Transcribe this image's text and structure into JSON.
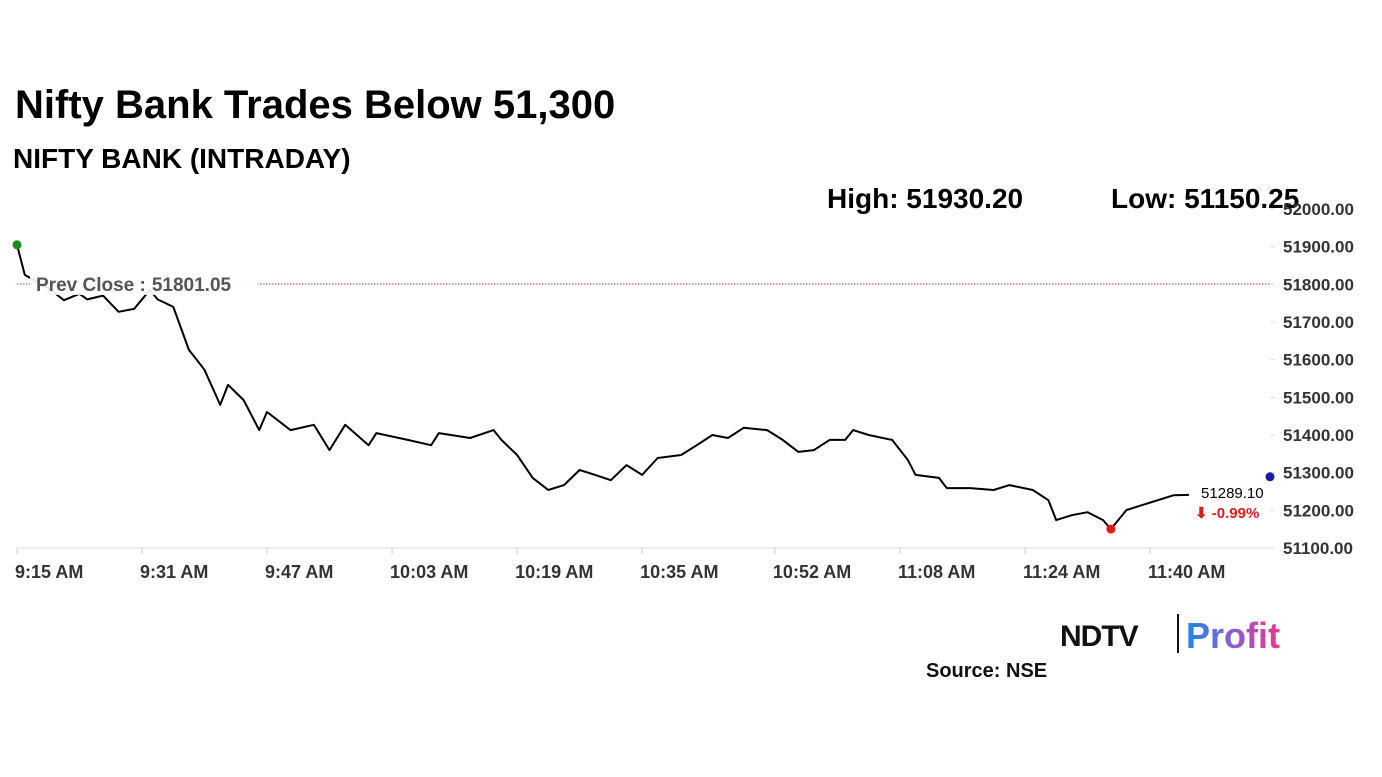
{
  "chart_data": {
    "type": "line",
    "title": "Nifty Bank Trades Below 51,300",
    "subtitle": "NIFTY BANK (INTRADAY)",
    "stats": [
      "High: 51930.20",
      "Low: 51150.25"
    ],
    "prev_close_label": "Prev Close :",
    "prev_close": 51801.05,
    "prev_close_color": "#c0392b",
    "last": {
      "value": 51289.1,
      "label": "51289.10",
      "color": "#1a1aa8"
    },
    "change_label": "⬇ -0.99%",
    "change_color": "#e01b1b",
    "start_color": "#1a8a1a",
    "low_color": "#e01b1b",
    "source": "Source: NSE",
    "logo": [
      "NDTV",
      "Profit"
    ],
    "x": [
      "9:15 AM",
      "9:16 AM",
      "9:19 AM",
      "9:21 AM",
      "9:23 AM",
      "9:24 AM",
      "9:26 AM",
      "9:28 AM",
      "9:30 AM",
      "9:32 AM",
      "9:33 AM",
      "9:35 AM",
      "9:37 AM",
      "9:38 AM",
      "9:39 AM",
      "9:41 AM",
      "9:42 AM",
      "9:44 AM",
      "9:46 AM",
      "9:47 AM",
      "9:50 AM",
      "9:53 AM",
      "9:55 AM",
      "9:57 AM",
      "10:00 AM",
      "10:01 AM",
      "10:05 AM",
      "10:08 AM",
      "10:09 AM",
      "10:13 AM",
      "10:16 AM",
      "10:17 AM",
      "10:19 AM",
      "10:21 AM",
      "10:23 AM",
      "10:25 AM",
      "10:27 AM",
      "10:29 AM",
      "10:31 AM",
      "10:33 AM",
      "10:35 AM",
      "10:37 AM",
      "10:40 AM",
      "10:42 AM",
      "10:44 AM",
      "10:46 AM",
      "10:48 AM",
      "10:51 AM",
      "10:53 AM",
      "10:55 AM",
      "10:57 AM",
      "10:59 AM",
      "11:01 AM",
      "11:02 AM",
      "11:04 AM",
      "11:07 AM",
      "11:09 AM",
      "11:10 AM",
      "11:13 AM",
      "11:14 AM",
      "11:17 AM",
      "11:20 AM",
      "11:22 AM",
      "11:25 AM",
      "11:27 AM",
      "11:28 AM",
      "11:30 AM",
      "11:32 AM",
      "11:34 AM",
      "11:35 AM",
      "11:37 AM",
      "11:39 AM",
      "11:41 AM",
      "11:43 AM",
      "11:45 AM"
    ],
    "series": [
      {
        "name": "NIFTY BANK",
        "color": "#000000",
        "values": [
          51905,
          51825,
          51790,
          51758,
          51775,
          51760,
          51770,
          51727,
          51735,
          51785,
          51760,
          51740,
          51626,
          51600,
          51573,
          51480,
          51533,
          51493,
          51413,
          51461,
          51413,
          51427,
          51360,
          51427,
          51373,
          51405,
          51387,
          51373,
          51405,
          51392,
          51413,
          51387,
          51347,
          51286,
          51254,
          51267,
          51307,
          51294,
          51280,
          51320,
          51294,
          51339,
          51347,
          51373,
          51400,
          51392,
          51419,
          51413,
          51387,
          51355,
          51360,
          51387,
          51387,
          51413,
          51400,
          51387,
          51334,
          51294,
          51286,
          51259,
          51259,
          51254,
          51267,
          51254,
          51227,
          51174,
          51187,
          51195,
          51174,
          51150.25,
          51201,
          51214,
          51227,
          51240,
          51241
        ]
      }
    ],
    "xlim": [
      "9:15 AM",
      "11:56 AM"
    ],
    "xticks": [
      "9:15 AM",
      "9:31 AM",
      "9:47 AM",
      "10:03 AM",
      "10:19 AM",
      "10:35 AM",
      "10:52 AM",
      "11:08 AM",
      "11:24 AM",
      "11:40 AM"
    ],
    "ylim": [
      51100,
      52000
    ],
    "yticks": [
      {
        "value": 51100,
        "label": "51100.00"
      },
      {
        "value": 51200,
        "label": "51200.00"
      },
      {
        "value": 51300,
        "label": "51300.00"
      },
      {
        "value": 51400,
        "label": "51400.00"
      },
      {
        "value": 51500,
        "label": "51500.00"
      },
      {
        "value": 51600,
        "label": "51600.00"
      },
      {
        "value": 51700,
        "label": "51700.00"
      },
      {
        "value": 51800,
        "label": "51800.00"
      },
      {
        "value": 51900,
        "label": "51900.00"
      },
      {
        "value": 52000,
        "label": "52000.00"
      }
    ],
    "grid": false
  }
}
